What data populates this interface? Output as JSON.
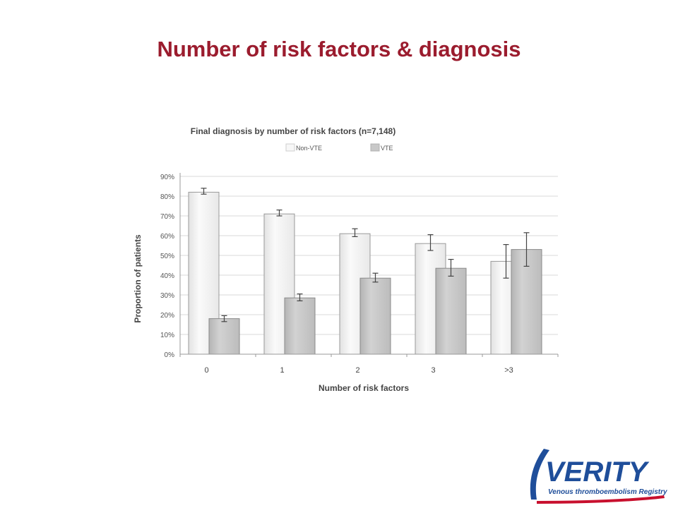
{
  "slide": {
    "title": "Number of risk factors & diagnosis"
  },
  "logo": {
    "word": "VERITY",
    "tagline": "Venous thromboembolism Registry"
  },
  "colors": {
    "title": "#9b1c2e",
    "logo_blue": "#1f4e9a",
    "logo_red": "#c8102e",
    "non_vte_bar": "#f3f3f3",
    "vte_bar": "#c8c8c8"
  },
  "chart_data": {
    "type": "bar",
    "title": "Final diagnosis by number of risk factors (n=7,148)",
    "xlabel": "Number of risk factors",
    "ylabel": "Proportion of patients",
    "categories": [
      "0",
      "1",
      "2",
      "3",
      ">3"
    ],
    "series": [
      {
        "name": "Non-VTE",
        "values": [
          82,
          71,
          61,
          56,
          47
        ],
        "err_low": [
          81,
          70,
          59.5,
          52.5,
          38.5
        ],
        "err_high": [
          84,
          73,
          63.5,
          60.5,
          55.5
        ]
      },
      {
        "name": "VTE",
        "values": [
          18,
          28.5,
          38.5,
          43.5,
          53
        ],
        "err_low": [
          16.5,
          27,
          36.5,
          39.5,
          44.5
        ],
        "err_high": [
          19.5,
          30.5,
          41,
          48,
          61.5
        ]
      }
    ],
    "ylim": [
      0,
      90
    ],
    "yticks": [
      0,
      10,
      20,
      30,
      40,
      50,
      60,
      70,
      80,
      90
    ],
    "ytick_labels": [
      "0%",
      "10%",
      "20%",
      "30%",
      "40%",
      "50%",
      "60%",
      "70%",
      "80%",
      "90%"
    ],
    "grid": true,
    "legend": "top"
  }
}
